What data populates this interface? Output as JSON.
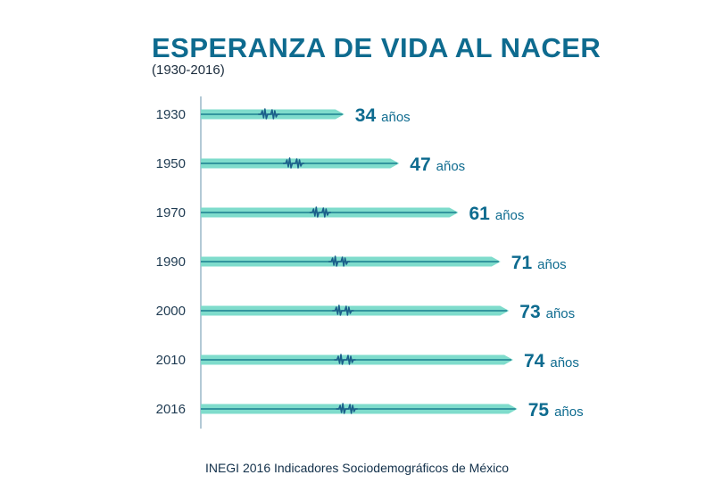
{
  "title": "ESPERANZA DE VIDA AL NACER",
  "subtitle": "(1930-2016)",
  "source": "INEGI 2016 Indicadores Sociodemográficos de México",
  "colors": {
    "bar_fill": "#7fdccc",
    "bar_line": "#1a7f8e",
    "pulse": "#1b5e8a",
    "value_text": "#0e6b8f",
    "axis": "#9ab7c8"
  },
  "chart_data": {
    "type": "bar",
    "orientation": "horizontal",
    "categories": [
      "1930",
      "1950",
      "1970",
      "1990",
      "2000",
      "2010",
      "2016"
    ],
    "values": [
      34,
      47,
      61,
      71,
      73,
      74,
      75
    ],
    "value_labels": [
      "34",
      "47",
      "61",
      "71",
      "73",
      "74",
      "75"
    ],
    "unit_label": "años",
    "title": "ESPERANZA DE VIDA AL NACER",
    "subtitle": "(1930-2016)",
    "xlim": [
      0,
      80
    ],
    "grid": false,
    "legend": "none"
  }
}
